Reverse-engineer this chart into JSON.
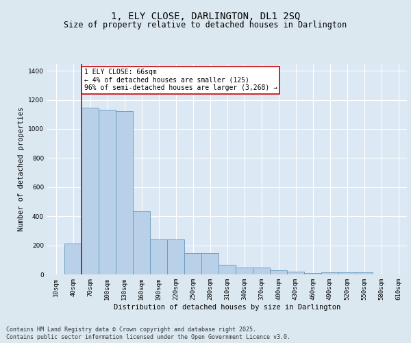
{
  "title": "1, ELY CLOSE, DARLINGTON, DL1 2SQ",
  "subtitle": "Size of property relative to detached houses in Darlington",
  "xlabel": "Distribution of detached houses by size in Darlington",
  "ylabel": "Number of detached properties",
  "categories": [
    "10sqm",
    "40sqm",
    "70sqm",
    "100sqm",
    "130sqm",
    "160sqm",
    "190sqm",
    "220sqm",
    "250sqm",
    "280sqm",
    "310sqm",
    "340sqm",
    "370sqm",
    "400sqm",
    "430sqm",
    "460sqm",
    "490sqm",
    "520sqm",
    "550sqm",
    "580sqm",
    "610sqm"
  ],
  "values": [
    0,
    210,
    1145,
    1130,
    1120,
    435,
    240,
    240,
    148,
    148,
    65,
    47,
    47,
    26,
    18,
    10,
    13,
    13,
    15,
    0,
    0
  ],
  "bar_color": "#b8d0e8",
  "bar_edgecolor": "#6699bb",
  "bar_linewidth": 0.6,
  "vline_color": "#cc0000",
  "vline_linewidth": 1.2,
  "vline_pos": 1.5,
  "annotation_text": "1 ELY CLOSE: 66sqm\n← 4% of detached houses are smaller (125)\n96% of semi-detached houses are larger (3,268) →",
  "annotation_box_edgecolor": "#cc0000",
  "annotation_box_facecolor": "#ffffff",
  "ylim": [
    0,
    1450
  ],
  "yticks": [
    0,
    200,
    400,
    600,
    800,
    1000,
    1200,
    1400
  ],
  "bg_color": "#dce8f0",
  "plot_bg_color": "#dce8f4",
  "footer_line1": "Contains HM Land Registry data © Crown copyright and database right 2025.",
  "footer_line2": "Contains public sector information licensed under the Open Government Licence v3.0.",
  "title_fontsize": 10,
  "subtitle_fontsize": 8.5,
  "axis_label_fontsize": 7.5,
  "tick_fontsize": 6.5,
  "annotation_fontsize": 7,
  "footer_fontsize": 6
}
